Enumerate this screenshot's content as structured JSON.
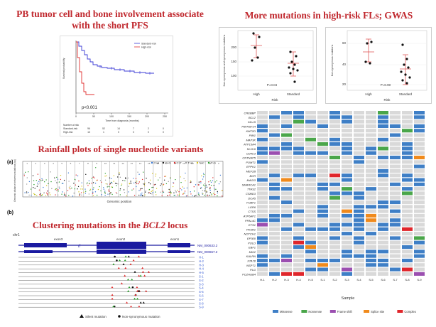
{
  "headings": {
    "pfs": "PB tumor cell and bone involvement associate with the short PFS",
    "mutations": "More mutations in high-risk FLs; GWAS",
    "rainfall": "Rainfall plots of single nucleotide variants",
    "bcl2_prefix": "Clustering mutations in the ",
    "bcl2_gene": "BCL2",
    "bcl2_suffix": " locus"
  },
  "panel_labels": {
    "a": "(a)",
    "b": "(b)"
  },
  "km": {
    "legend": [
      "Standard-risk",
      "High-risk"
    ],
    "pvalue": "p<0.001",
    "xlabel": "Time from diagnosis (months)",
    "ylabel": "Survival probability",
    "xticks": [
      "0",
      "50",
      "100",
      "150",
      "200",
      "250"
    ],
    "risk_title": "Number at risk",
    "risk_rows": [
      {
        "label": "Standard-risk",
        "values": [
          "96",
          "52",
          "14",
          "7",
          "2",
          "0"
        ]
      },
      {
        "label": "High-risk",
        "values": [
          "13",
          "1",
          "0",
          "0",
          "0",
          "0"
        ]
      }
    ],
    "colors": {
      "standard": "#3b3bd6",
      "high": "#e03030"
    }
  },
  "dot1": {
    "ylabel": "Non-synonymous and synonymous mutations",
    "xlabel": "Risk",
    "pvalue": "P=0.04",
    "yticks": [
      "100",
      "150",
      "200"
    ],
    "categories": [
      "High",
      "Standard"
    ]
  },
  "dot2": {
    "ylabel": "Non-synonymous mutations",
    "xlabel": "Risk",
    "pvalue": "P=0.90",
    "yticks": [
      "20",
      "40",
      "60"
    ],
    "categories": [
      "High",
      "Standard"
    ]
  },
  "heatmap": {
    "genes": [
      "CREBBP",
      "BCL2",
      "IGLL5",
      "TNFRSF14",
      "KMT2D",
      "PIM1",
      "MAP3K",
      "ATP13A4",
      "KLHL6",
      "CD4C3",
      "CNTNAP5",
      "POMT1",
      "EPPK1",
      "MEF2B",
      "BCR",
      "MAGI3",
      "SMARCA1",
      "TTAS2",
      "CSMD3",
      "DCA5",
      "FUBP1",
      "LGR6",
      "CTSS",
      "ATP6AP1",
      "PPAL4C",
      "ETS1",
      "PKSR1",
      "NOTCH1",
      "EP300",
      "POLD",
      "EBF1",
      "MKI2",
      "KALRN",
      "XTA78",
      "NSPT1",
      "PLG",
      "PCZHGB4"
    ],
    "samples": [
      "H-1",
      "H-2",
      "H-3",
      "H-4",
      "H-5",
      "S-1",
      "S-2",
      "S-3",
      "S-4",
      "S-5",
      "S-6",
      "S-7",
      "S-8",
      "S-9"
    ],
    "xlabel": "Sample",
    "legend": [
      {
        "label": "Missense",
        "color": "#3f7fc6"
      },
      {
        "label": "Nonsense",
        "color": "#4aa64a"
      },
      {
        "label": "Frame shift",
        "color": "#9b4fb0"
      },
      {
        "label": "Splice site",
        "color": "#f08a1c"
      },
      {
        "label": "Complex",
        "color": "#e0262b"
      }
    ],
    "empty_color": "#d9d9d9"
  },
  "rainfall": {
    "legend": [
      "C>A",
      "C>G",
      "C>T",
      "T>A",
      "T>C",
      "T>G"
    ],
    "legend_colors": [
      "#3a7ad6",
      "#1a1a1a",
      "#e03030",
      "#9b9b9b",
      "#d4c21c",
      "#2ca02c"
    ],
    "xlabel": "Genomic position",
    "ylabel": "Genomic distance between mutations (bp)",
    "chromosomes": [
      "1",
      "2",
      "3",
      "4",
      "5",
      "6",
      "7",
      "8",
      "9",
      "10",
      "11",
      "12",
      "13",
      "14",
      "15",
      "16",
      "17",
      "18",
      "19",
      "20",
      "21",
      "22",
      "X"
    ]
  },
  "bcl2": {
    "chr": "chr1",
    "transcripts": [
      "NM_000633.2",
      "NM_000657.2"
    ],
    "exons": [
      "exon3",
      "exon2",
      "exon1"
    ],
    "samples": [
      "H-1",
      "H-2",
      "H-3",
      "H-4",
      "H-5",
      "S-1",
      "S-2",
      "S-3",
      "S-4",
      "S-5",
      "S-6",
      "S-7",
      "S-8",
      "S-9"
    ],
    "legend": [
      "Silent mutation",
      "Non-synonymous mutation"
    ]
  }
}
